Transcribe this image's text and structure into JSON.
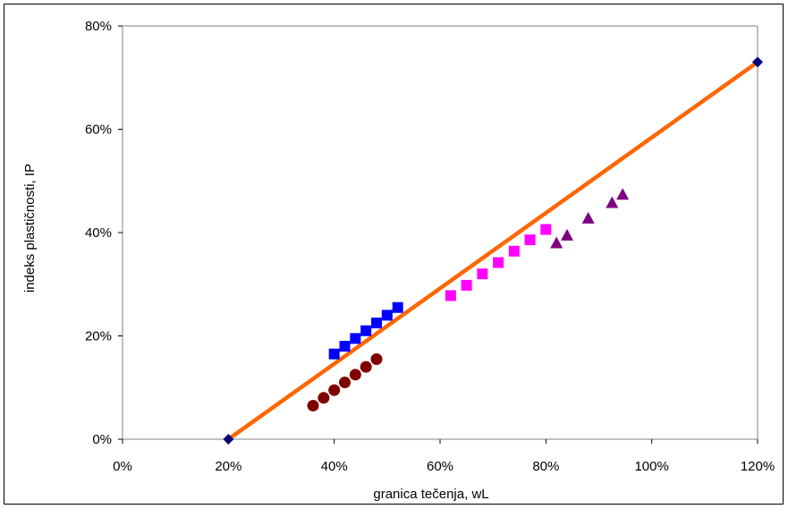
{
  "chart_data": {
    "type": "scatter",
    "xlabel": "granica tečenja, wL",
    "ylabel": "indeks plastičnosti, IP",
    "xlim": [
      0,
      1.2
    ],
    "ylim": [
      0,
      0.8
    ],
    "x_ticks": [
      "0%",
      "20%",
      "40%",
      "60%",
      "80%",
      "100%",
      "120%"
    ],
    "y_ticks": [
      "0%",
      "20%",
      "40%",
      "60%",
      "80%"
    ],
    "grid": false,
    "legend": "none",
    "series": [
      {
        "marker": "diamond",
        "color": "#000080",
        "points": [
          [
            0.2,
            0.0
          ],
          [
            1.2,
            0.73
          ]
        ]
      },
      {
        "marker": "square",
        "color": "#0000ff",
        "points": [
          [
            0.4,
            0.165
          ],
          [
            0.42,
            0.18
          ],
          [
            0.44,
            0.195
          ],
          [
            0.46,
            0.21
          ],
          [
            0.48,
            0.225
          ],
          [
            0.5,
            0.24
          ],
          [
            0.52,
            0.255
          ]
        ]
      },
      {
        "marker": "circle",
        "color": "#800000",
        "points": [
          [
            0.36,
            0.065
          ],
          [
            0.38,
            0.08
          ],
          [
            0.4,
            0.095
          ],
          [
            0.42,
            0.11
          ],
          [
            0.44,
            0.125
          ],
          [
            0.46,
            0.14
          ],
          [
            0.48,
            0.155
          ]
        ]
      },
      {
        "marker": "square",
        "color": "#ff00ff",
        "points": [
          [
            0.62,
            0.278
          ],
          [
            0.65,
            0.298
          ],
          [
            0.68,
            0.32
          ],
          [
            0.71,
            0.342
          ],
          [
            0.74,
            0.364
          ],
          [
            0.77,
            0.386
          ],
          [
            0.8,
            0.406
          ]
        ]
      },
      {
        "marker": "triangle",
        "color": "#800080",
        "points": [
          [
            0.82,
            0.38
          ],
          [
            0.84,
            0.395
          ],
          [
            0.88,
            0.428
          ],
          [
            0.925,
            0.458
          ],
          [
            0.945,
            0.474
          ]
        ]
      }
    ],
    "line": {
      "color": "#ff6600",
      "points": [
        [
          0.2,
          0.0
        ],
        [
          1.2,
          0.73
        ]
      ]
    }
  }
}
